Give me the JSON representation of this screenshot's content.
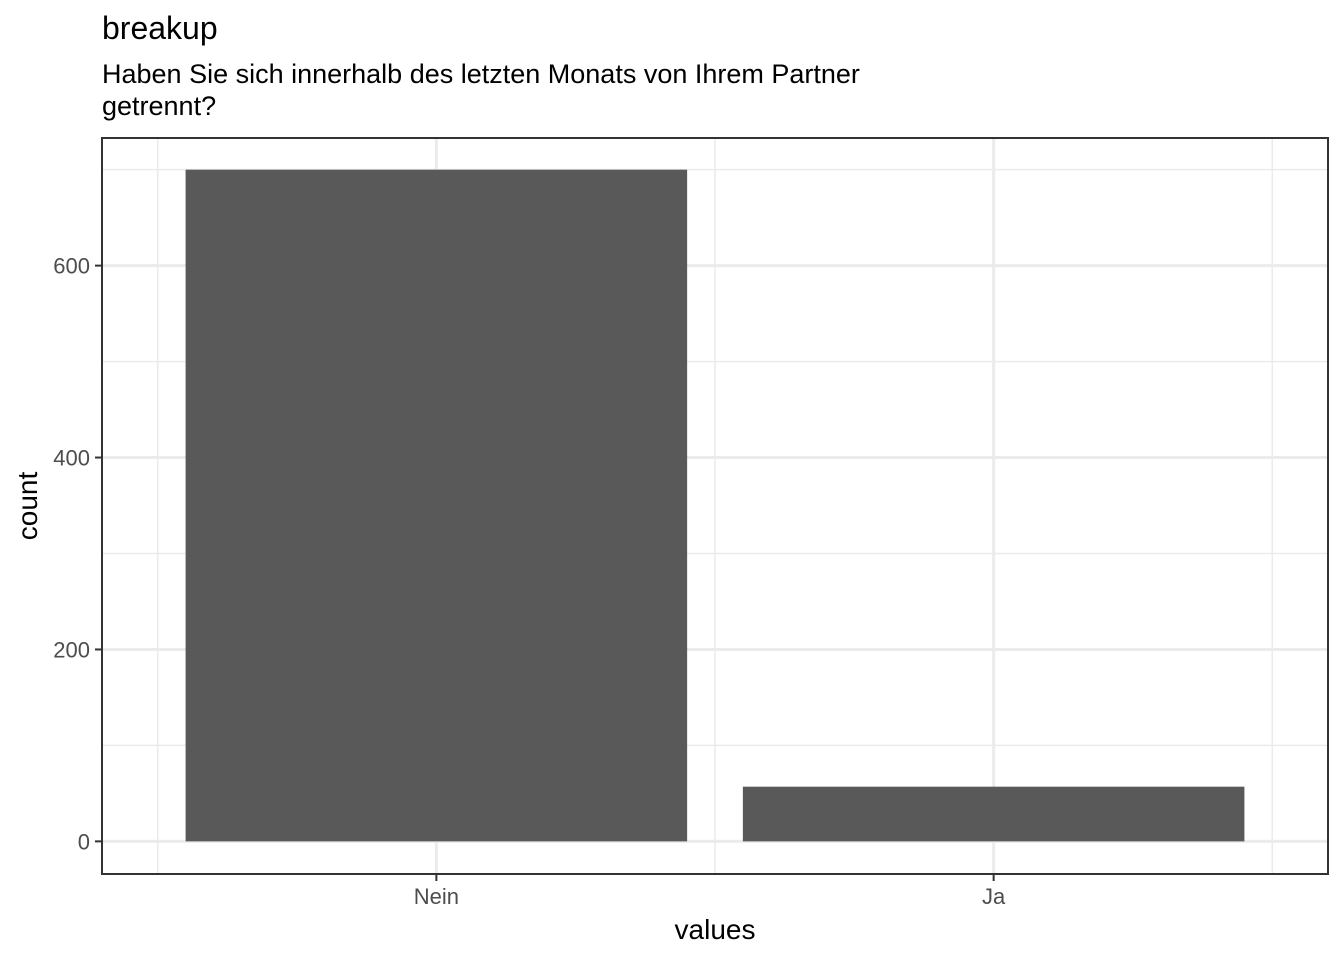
{
  "chart_data": {
    "type": "bar",
    "title": "breakup",
    "subtitle": "Haben Sie sich innerhalb des letzten Monats von Ihrem Partner\ngetrennt?",
    "xlabel": "values",
    "ylabel": "count",
    "categories": [
      "Nein",
      "Ja"
    ],
    "values": [
      700,
      57
    ],
    "ylim": [
      -34,
      733
    ],
    "yticks": [
      0,
      200,
      400,
      600
    ],
    "ytick_labels": [
      "0",
      "200",
      "400",
      "600"
    ],
    "grid": true,
    "legend": "none",
    "bar_color": "#595959"
  }
}
